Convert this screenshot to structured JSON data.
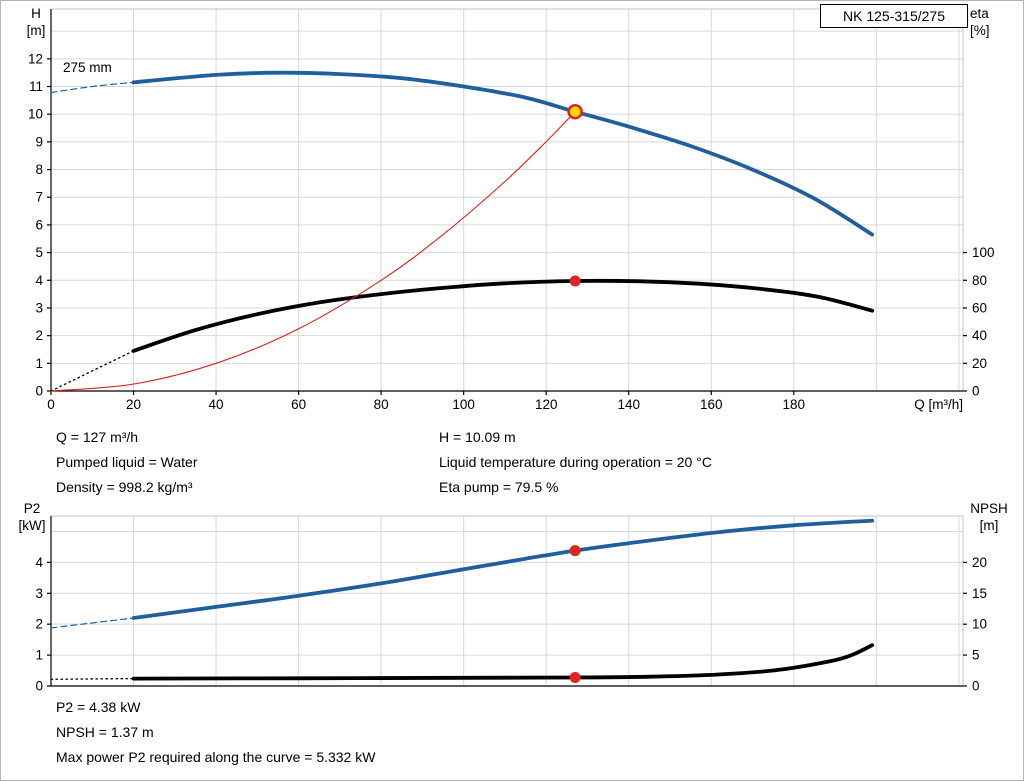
{
  "colors": {
    "blue": "#1f5f9e",
    "black": "#000000",
    "red": "#e02420",
    "yellow": "#ffd800",
    "grid": "#d8d8d8",
    "frame": "#c3c3c3"
  },
  "chart_data": [
    {
      "type": "line",
      "title": "NK 125-315/275",
      "curve_label": "275 mm",
      "x": {
        "label": "Q [m³/h]",
        "min": 0,
        "max": 221,
        "ticks": [
          0,
          20,
          40,
          60,
          80,
          100,
          120,
          140,
          160,
          180
        ],
        "grid": [
          20,
          40,
          60,
          80,
          100,
          120,
          140,
          160,
          180,
          200,
          220
        ]
      },
      "y_left": {
        "label_line1": "H",
        "label_line2": "[m]",
        "min": 0,
        "max": 13.8,
        "ticks": [
          0,
          1,
          2,
          3,
          4,
          5,
          6,
          7,
          8,
          9,
          10,
          11,
          12
        ],
        "grid": [
          1,
          2,
          3,
          4,
          5,
          6,
          7,
          8,
          9,
          10,
          11,
          12,
          13
        ]
      },
      "y_right": {
        "label_line1": "eta",
        "label_line2": "[%]",
        "ticks": [
          0,
          20,
          40,
          60,
          80,
          100
        ],
        "unit_in_left": 0.05
      },
      "series": [
        {
          "name": "head-curve-leadin",
          "axis": "left",
          "style": "dashed",
          "width": 1.2,
          "color": "blue",
          "points": [
            [
              0,
              10.78
            ],
            [
              10,
              11.0
            ],
            [
              20,
              11.15
            ]
          ]
        },
        {
          "name": "head-curve",
          "axis": "left",
          "style": "solid",
          "width": 3.8,
          "color": "blue",
          "points": [
            [
              20,
              11.15
            ],
            [
              40,
              11.42
            ],
            [
              55,
              11.5
            ],
            [
              70,
              11.45
            ],
            [
              85,
              11.3
            ],
            [
              100,
              11.0
            ],
            [
              115,
              10.6
            ],
            [
              127,
              10.09
            ],
            [
              140,
              9.55
            ],
            [
              155,
              8.85
            ],
            [
              170,
              8.0
            ],
            [
              185,
              6.95
            ],
            [
              199,
              5.65
            ]
          ]
        },
        {
          "name": "eta-curve-leadin",
          "axis": "right",
          "style": "dotted",
          "width": 1.3,
          "color": "black",
          "points": [
            [
              0,
              0
            ],
            [
              20,
              29
            ]
          ]
        },
        {
          "name": "eta-curve",
          "axis": "right",
          "style": "solid",
          "width": 3.8,
          "color": "black",
          "points": [
            [
              20,
              29
            ],
            [
              35,
              44
            ],
            [
              50,
              55.5
            ],
            [
              65,
              64
            ],
            [
              80,
              70
            ],
            [
              95,
              74.5
            ],
            [
              110,
              77.8
            ],
            [
              127,
              79.5
            ],
            [
              142,
              79.3
            ],
            [
              157,
              77.5
            ],
            [
              172,
              73.8
            ],
            [
              186,
              68
            ],
            [
              199,
              58
            ]
          ]
        },
        {
          "name": "duty-parabola",
          "axis": "left",
          "style": "solid",
          "width": 1.1,
          "color": "red",
          "points": [
            [
              0,
              0
            ],
            [
              20,
              0.25
            ],
            [
              40,
              1.0
            ],
            [
              60,
              2.25
            ],
            [
              80,
              4.0
            ],
            [
              95,
              5.65
            ],
            [
              110,
              7.57
            ],
            [
              120,
              9.01
            ],
            [
              127,
              10.09
            ]
          ]
        }
      ],
      "markers": [
        {
          "name": "duty-point",
          "axis": "left",
          "q": 127,
          "value": 10.09,
          "r": 6.5,
          "fill": "yellow",
          "stroke": "red"
        },
        {
          "name": "eta-point",
          "axis": "right",
          "q": 127,
          "value": 79.5,
          "r": 5.5,
          "fill": "red"
        }
      ]
    },
    {
      "type": "line",
      "x": {
        "label": "",
        "min": 0,
        "max": 221,
        "ticks": [],
        "grid": [
          20,
          40,
          60,
          80,
          100,
          120,
          140,
          160,
          180,
          200,
          220
        ]
      },
      "y_left": {
        "label_line1": "P2",
        "label_line2": "[kW]",
        "min": 0,
        "max": 5.5,
        "ticks": [
          0,
          1,
          2,
          3,
          4
        ],
        "grid": [
          1,
          2,
          3,
          4,
          5
        ]
      },
      "y_right": {
        "label_line1": "NPSH",
        "label_line2": "[m]",
        "ticks": [
          0,
          5,
          10,
          15,
          20
        ],
        "unit_in_left": 0.2
      },
      "series": [
        {
          "name": "p2-curve-leadin",
          "axis": "left",
          "style": "dashed",
          "width": 1.2,
          "color": "blue",
          "points": [
            [
              0,
              1.88
            ],
            [
              20,
              2.2
            ]
          ]
        },
        {
          "name": "p2-curve",
          "axis": "left",
          "style": "solid",
          "width": 3.8,
          "color": "blue",
          "points": [
            [
              20,
              2.2
            ],
            [
              40,
              2.56
            ],
            [
              60,
              2.92
            ],
            [
              80,
              3.32
            ],
            [
              100,
              3.78
            ],
            [
              115,
              4.12
            ],
            [
              127,
              4.38
            ],
            [
              140,
              4.62
            ],
            [
              160,
              4.95
            ],
            [
              180,
              5.2
            ],
            [
              199,
              5.35
            ]
          ]
        },
        {
          "name": "npsh-curve-leadin",
          "axis": "right",
          "style": "dotted",
          "width": 1.3,
          "color": "black",
          "points": [
            [
              0,
              1.08
            ],
            [
              20,
              1.2
            ]
          ]
        },
        {
          "name": "npsh-curve",
          "axis": "right",
          "style": "solid",
          "width": 3.8,
          "color": "black",
          "points": [
            [
              20,
              1.2
            ],
            [
              60,
              1.25
            ],
            [
              100,
              1.32
            ],
            [
              127,
              1.37
            ],
            [
              145,
              1.5
            ],
            [
              160,
              1.8
            ],
            [
              175,
              2.5
            ],
            [
              188,
              3.9
            ],
            [
              194,
              5.0
            ],
            [
              199,
              6.6
            ]
          ]
        }
      ],
      "markers": [
        {
          "name": "p2-point",
          "axis": "left",
          "q": 127,
          "value": 4.38,
          "r": 5.5,
          "fill": "red"
        },
        {
          "name": "npsh-point",
          "axis": "right",
          "q": 127,
          "value": 1.37,
          "r": 5.5,
          "fill": "red"
        }
      ]
    }
  ],
  "info_top": {
    "left": [
      "Q = 127 m³/h",
      "Pumped liquid = Water",
      "Density = 998.2 kg/m³"
    ],
    "right": [
      "H = 10.09 m",
      "Liquid temperature during operation = 20 °C",
      "Eta pump = 79.5 %"
    ]
  },
  "info_bottom": [
    "P2 = 4.38 kW",
    "NPSH = 1.37 m",
    "Max power P2 required along the curve = 5.332 kW"
  ]
}
